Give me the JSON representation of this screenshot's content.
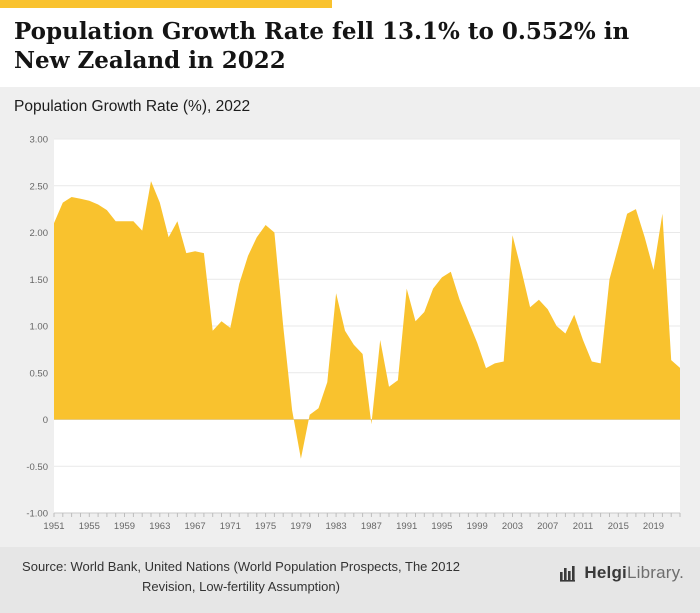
{
  "accent_color": "#F9C22E",
  "header": {
    "title": "Population Growth Rate fell 13.1% to 0.552% in New Zealand in 2022"
  },
  "subtitle": "Population Growth Rate (%), 2022",
  "footer": {
    "source_lines": [
      "Source: World Bank, United Nations (World Population Prospects, The 2012",
      "Revision, Low-fertility Assumption)"
    ],
    "logo": {
      "bold": "Helgi",
      "light": "Library",
      "dot": "."
    }
  },
  "chart_data": {
    "type": "area",
    "title": "Population Growth Rate (%), 2022",
    "xlabel": "",
    "ylabel": "Population Growth Rate (%)",
    "ylim": [
      -1.0,
      3.0
    ],
    "grid": true,
    "legend": "none",
    "fill_color": "#F9C22E",
    "y_ticks": [
      {
        "value": 3.0,
        "label": "3.00"
      },
      {
        "value": 2.5,
        "label": "2.50"
      },
      {
        "value": 2.0,
        "label": "2.00"
      },
      {
        "value": 1.5,
        "label": "1.50"
      },
      {
        "value": 1.0,
        "label": "1.00"
      },
      {
        "value": 0.5,
        "label": "0.50"
      },
      {
        "value": 0.0,
        "label": "0"
      },
      {
        "value": -0.5,
        "label": "-0.50"
      },
      {
        "value": -1.0,
        "label": "-1.00"
      }
    ],
    "x_tick_labels": [
      1951,
      1955,
      1959,
      1963,
      1967,
      1971,
      1975,
      1979,
      1983,
      1987,
      1991,
      1995,
      1999,
      2003,
      2007,
      2011,
      2015,
      2019
    ],
    "years": [
      1951,
      1952,
      1953,
      1954,
      1955,
      1956,
      1957,
      1958,
      1959,
      1960,
      1961,
      1962,
      1963,
      1964,
      1965,
      1966,
      1967,
      1968,
      1969,
      1970,
      1971,
      1972,
      1973,
      1974,
      1975,
      1976,
      1977,
      1978,
      1979,
      1980,
      1981,
      1982,
      1983,
      1984,
      1985,
      1986,
      1987,
      1988,
      1989,
      1990,
      1991,
      1992,
      1993,
      1994,
      1995,
      1996,
      1997,
      1998,
      1999,
      2000,
      2001,
      2002,
      2003,
      2004,
      2005,
      2006,
      2007,
      2008,
      2009,
      2010,
      2011,
      2012,
      2013,
      2014,
      2015,
      2016,
      2017,
      2018,
      2019,
      2020,
      2021,
      2022
    ],
    "values": [
      2.1,
      2.32,
      2.38,
      2.36,
      2.34,
      2.3,
      2.24,
      2.12,
      2.12,
      2.12,
      2.02,
      2.55,
      2.32,
      1.95,
      2.12,
      1.78,
      1.8,
      1.78,
      0.95,
      1.05,
      0.98,
      1.45,
      1.75,
      1.95,
      2.08,
      2.0,
      1.0,
      0.1,
      -0.42,
      0.05,
      0.12,
      0.4,
      1.35,
      0.95,
      0.8,
      0.7,
      -0.05,
      0.85,
      0.35,
      0.42,
      1.4,
      1.05,
      1.15,
      1.4,
      1.52,
      1.58,
      1.28,
      1.05,
      0.82,
      0.55,
      0.6,
      0.62,
      1.97,
      1.6,
      1.2,
      1.28,
      1.18,
      1.0,
      0.92,
      1.12,
      0.85,
      0.62,
      0.6,
      1.5,
      1.85,
      2.2,
      2.25,
      1.95,
      1.6,
      2.2,
      0.635,
      0.552
    ]
  }
}
